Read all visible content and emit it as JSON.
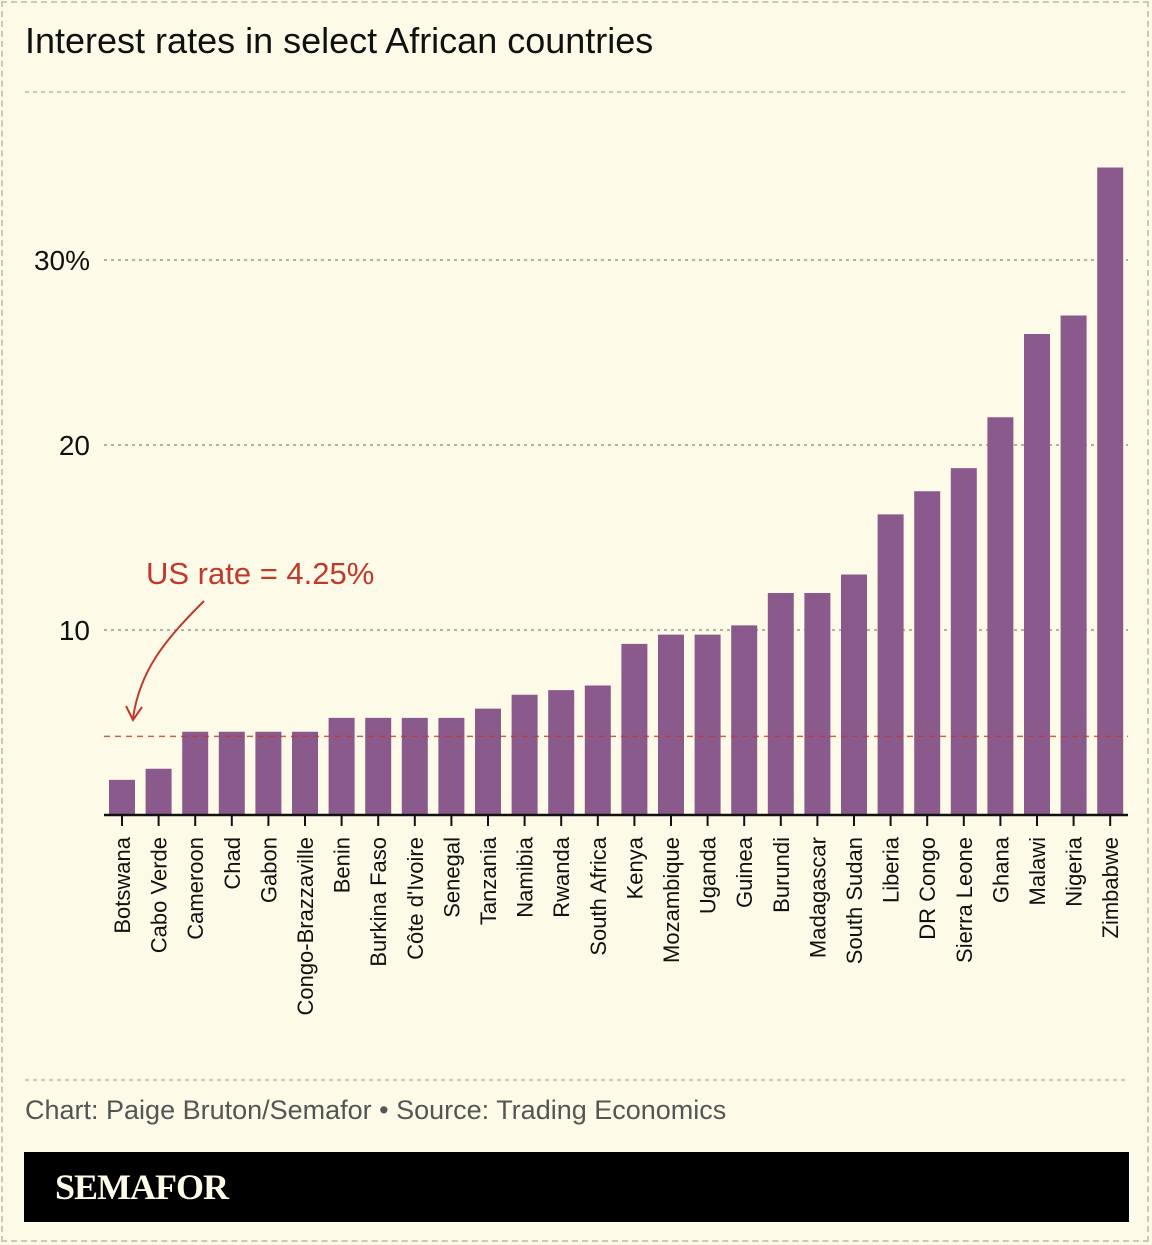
{
  "title": "Interest rates in select African countries",
  "credit": "Chart: Paige Bruton/Semafor  • Source: Trading Economics",
  "brand": "SEMAFOR",
  "colors": {
    "bar": "#8b5a8c",
    "reference": "#c0392b",
    "background": "#fdfbe8"
  },
  "chart_data": {
    "type": "bar",
    "title": "Interest rates in select African countries",
    "categories": [
      "Botswana",
      "Cabo Verde",
      "Cameroon",
      "Chad",
      "Gabon",
      "Congo-Brazzaville",
      "Benin",
      "Burkina Faso",
      "Côte d'Ivoire",
      "Senegal",
      "Tanzania",
      "Namibia",
      "Rwanda",
      "South Africa",
      "Kenya",
      "Mozambique",
      "Uganda",
      "Guinea",
      "Burundi",
      "Madagascar",
      "South Sudan",
      "Liberia",
      "DR Congo",
      "Sierra Leone",
      "Ghana",
      "Malawi",
      "Nigeria",
      "Zimbabwe"
    ],
    "values": [
      1.9,
      2.5,
      4.5,
      4.5,
      4.5,
      4.5,
      5.25,
      5.25,
      5.25,
      5.25,
      5.75,
      6.5,
      6.75,
      7.0,
      9.25,
      9.75,
      9.75,
      10.25,
      12,
      12,
      13,
      16.25,
      17.5,
      18.75,
      21.5,
      26,
      27,
      35
    ],
    "ylim": [
      0,
      37
    ],
    "yticks": [
      {
        "value": 10,
        "label": "10"
      },
      {
        "value": 20,
        "label": "20"
      },
      {
        "value": 30,
        "label": "30%"
      }
    ],
    "grid": true,
    "reference_line": {
      "value": 4.25,
      "label": "US rate = 4.25%"
    }
  }
}
